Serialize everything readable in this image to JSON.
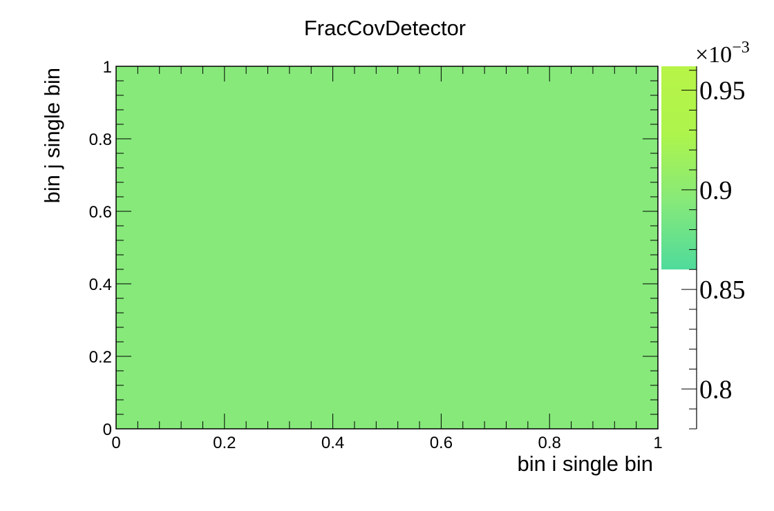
{
  "chart_data": {
    "type": "heatmap",
    "title": "FracCovDetector",
    "xlabel": "bin i single bin",
    "ylabel": "bin j single bin",
    "xlim": [
      0,
      1
    ],
    "ylim": [
      0,
      1
    ],
    "x_ticks": [
      0,
      0.2,
      0.4,
      0.6,
      0.8,
      1
    ],
    "y_ticks": [
      0,
      0.2,
      0.4,
      0.6,
      0.8,
      1
    ],
    "x_tick_labels": [
      "0",
      "0.2",
      "0.4",
      "0.6",
      "0.8",
      "1"
    ],
    "y_tick_labels": [
      "0",
      "0.2",
      "0.4",
      "0.6",
      "0.8",
      "1"
    ],
    "cells": [
      {
        "x_range": [
          0,
          1
        ],
        "y_range": [
          0,
          1
        ],
        "value": 0.00087
      }
    ],
    "cell_color": "#86e97a",
    "colorbar": {
      "multiplier_label": "×10",
      "multiplier_exponent": "−3",
      "zlim": [
        0.78,
        0.962
      ],
      "filled_range": [
        0.86,
        0.962
      ],
      "tick_values": [
        0.8,
        0.85,
        0.9,
        0.95
      ],
      "tick_labels": [
        "0.8",
        "0.85",
        "0.9",
        "0.95"
      ],
      "gradient_colors": [
        "#4fdb9b",
        "#86e97a",
        "#adf44c",
        "#b8f448"
      ]
    },
    "grid": false,
    "legend": "none"
  }
}
